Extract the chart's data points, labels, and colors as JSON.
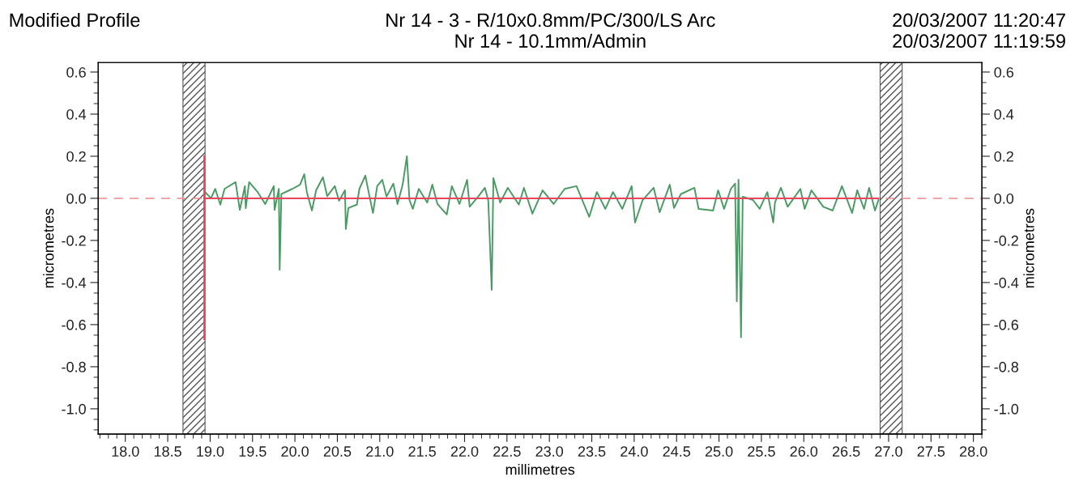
{
  "chart_data": {
    "type": "line",
    "title": "Modified Profile",
    "annotations": [
      "Nr 14 - 3 - R/10x0.8mm/PC/300/LS Arc",
      "Nr 14 - 10.1mm/Admin",
      "20/03/2007 11:20:47",
      "20/03/2007 11:19:59"
    ],
    "xlabel": "millimetres",
    "ylabel": "micrometres",
    "y2label": "micrometres",
    "xlim": [
      17.68,
      28.1
    ],
    "ylim": [
      -1.12,
      0.645
    ],
    "y2lim": [
      -1.12,
      0.645
    ],
    "xticks": [
      {
        "value": 18,
        "label": "18.0"
      },
      {
        "value": 18.5,
        "label": "18.5"
      },
      {
        "value": 19,
        "label": "19.0"
      },
      {
        "value": 19.5,
        "label": "19.5"
      },
      {
        "value": 20,
        "label": "20.0"
      },
      {
        "value": 20.5,
        "label": "20.5"
      },
      {
        "value": 21,
        "label": "21.0"
      },
      {
        "value": 21.5,
        "label": "21.5"
      },
      {
        "value": 22,
        "label": "22.0"
      },
      {
        "value": 22.5,
        "label": "22.5"
      },
      {
        "value": 23,
        "label": "23.0"
      },
      {
        "value": 23.5,
        "label": "23.5"
      },
      {
        "value": 24,
        "label": "24.0"
      },
      {
        "value": 24.5,
        "label": "24.5"
      },
      {
        "value": 25,
        "label": "25.0"
      },
      {
        "value": 25.5,
        "label": "25.5"
      },
      {
        "value": 26,
        "label": "26.0"
      },
      {
        "value": 26.5,
        "label": "26.5"
      },
      {
        "value": 27,
        "label": "27.0"
      },
      {
        "value": 27.5,
        "label": "27.5"
      },
      {
        "value": 28,
        "label": "28.0"
      }
    ],
    "yticks": [
      {
        "value": 0.6,
        "label": "0.6"
      },
      {
        "value": 0.4,
        "label": "0.4"
      },
      {
        "value": 0.2,
        "label": "0.2"
      },
      {
        "value": 0,
        "label": "0.0"
      },
      {
        "value": -0.2,
        "label": "-0.2"
      },
      {
        "value": -0.4,
        "label": "-0.4"
      },
      {
        "value": -0.6,
        "label": "-0.6"
      },
      {
        "value": -0.8,
        "label": "-0.8"
      },
      {
        "value": -1.0,
        "label": "-1.0"
      }
    ],
    "y2ticks": [
      {
        "value": 0.6,
        "label": "0.6"
      },
      {
        "value": 0.4,
        "label": "0.4"
      },
      {
        "value": 0.2,
        "label": "0.2"
      },
      {
        "value": 0,
        "label": "0.0"
      },
      {
        "value": -0.2,
        "label": "-0.2"
      },
      {
        "value": -0.4,
        "label": "-0.4"
      },
      {
        "value": -0.6,
        "label": "-0.6"
      },
      {
        "value": -0.8,
        "label": "-0.8"
      },
      {
        "value": -1.0,
        "label": "-1.0"
      }
    ],
    "grid": false,
    "bands": [
      {
        "axis": "x",
        "from": 18.68,
        "to": 18.94,
        "color": "#555555"
      },
      {
        "axis": "x",
        "from": 26.9,
        "to": 27.16,
        "color": "#555555"
      }
    ],
    "ref_lines": [
      {
        "axis": "y",
        "value": 0,
        "color": "#e88a90",
        "line_style": "dashed"
      }
    ],
    "series": [
      {
        "color": "#4a9a64",
        "x": [
          18.94,
          19.01,
          19.06,
          19.12,
          19.17,
          19.3,
          19.35,
          19.41,
          19.42,
          19.46,
          19.56,
          19.65,
          19.75,
          19.76,
          19.81,
          19.82,
          19.84,
          19.97,
          20.06,
          20.11,
          20.14,
          20.2,
          20.25,
          20.33,
          20.38,
          20.47,
          20.52,
          20.59,
          20.6,
          20.63,
          20.73,
          20.76,
          20.83,
          20.87,
          20.92,
          20.97,
          21.03,
          21.08,
          21.16,
          21.21,
          21.27,
          21.32,
          21.35,
          21.39,
          21.46,
          21.56,
          21.62,
          21.68,
          21.79,
          21.85,
          21.94,
          22.03,
          22.06,
          22.16,
          22.24,
          22.28,
          22.32,
          22.34,
          22.42,
          22.51,
          22.64,
          22.7,
          22.8,
          22.92,
          23.05,
          23.18,
          23.32,
          23.47,
          23.56,
          23.66,
          23.75,
          23.86,
          23.97,
          24.01,
          24.1,
          24.23,
          24.3,
          24.42,
          24.47,
          24.55,
          24.71,
          24.76,
          24.93,
          24.99,
          25.06,
          25.14,
          25.19,
          25.21,
          25.23,
          25.26,
          25.28,
          25.4,
          25.48,
          25.57,
          25.64,
          25.66,
          25.73,
          25.81,
          25.96,
          26.01,
          26.09,
          26.23,
          26.34,
          26.45,
          26.57,
          26.63,
          26.71,
          26.77,
          26.84,
          26.88
        ],
        "values": [
          0.03,
          0.0,
          0.045,
          -0.03,
          0.045,
          0.077,
          -0.055,
          0.058,
          -0.047,
          0.077,
          0.03,
          -0.027,
          0.058,
          -0.055,
          0.045,
          -0.34,
          0.02,
          0.045,
          0.065,
          0.115,
          0.03,
          -0.058,
          0.038,
          0.1,
          0.01,
          0.058,
          -0.012,
          0.038,
          -0.146,
          -0.046,
          -0.03,
          0.045,
          0.108,
          0.027,
          -0.07,
          0.058,
          0.088,
          0.008,
          0.07,
          -0.027,
          0.065,
          0.2,
          -0.008,
          -0.05,
          0.045,
          -0.02,
          0.065,
          -0.027,
          -0.077,
          0.058,
          -0.027,
          0.088,
          -0.04,
          0.008,
          0.05,
          -0.012,
          -0.435,
          0.096,
          -0.02,
          0.05,
          -0.03,
          0.05,
          -0.073,
          0.038,
          -0.027,
          0.045,
          0.058,
          -0.088,
          0.03,
          -0.05,
          0.03,
          -0.05,
          0.058,
          -0.115,
          -0.008,
          0.05,
          -0.066,
          0.065,
          -0.046,
          0.02,
          0.05,
          -0.05,
          -0.058,
          0.038,
          -0.05,
          0.045,
          0.07,
          -0.49,
          0.088,
          -0.66,
          0.008,
          -0.008,
          -0.05,
          0.03,
          -0.115,
          -0.02,
          0.05,
          -0.04,
          0.045,
          -0.05,
          0.038,
          -0.04,
          -0.058,
          0.058,
          -0.07,
          0.038,
          -0.05,
          0.05,
          -0.058,
          -0.008
        ]
      },
      {
        "color": "#e8455a",
        "x": [
          18.93,
          18.93
        ],
        "values": [
          0.2,
          -0.67
        ]
      },
      {
        "color": "#e8455a",
        "x": [
          18.93,
          26.88
        ],
        "values": [
          0,
          0
        ]
      }
    ]
  }
}
